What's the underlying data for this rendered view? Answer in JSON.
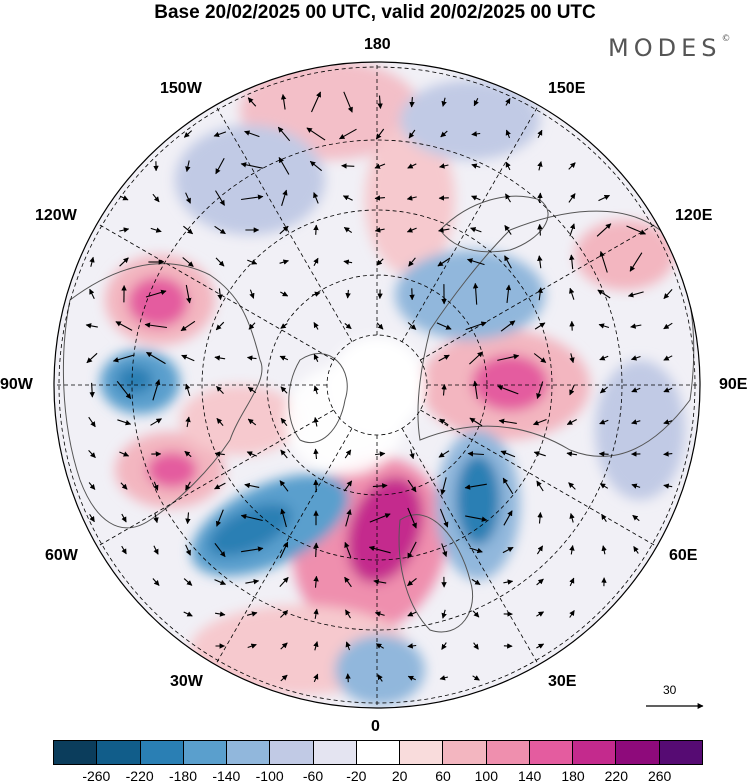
{
  "title": "Base 20/02/2025 00 UTC, valid 20/02/2025 00 UTC",
  "brand": "MODES",
  "brand_mark": "©",
  "longitude_labels": {
    "n180": "180",
    "w150": "150W",
    "e150": "150E",
    "w120": "120W",
    "e120": "120E",
    "w90": "90W",
    "e90": "90E",
    "w60": "60W",
    "e60": "60E",
    "w30": "30W",
    "e30": "30E",
    "s0": "0"
  },
  "reference_vector_label": "30",
  "colorbar": {
    "colors": [
      "#0b3d5c",
      "#115d8a",
      "#2a7fb4",
      "#5a9fcd",
      "#91b7dc",
      "#c1cae5",
      "#e4e4f1",
      "#ffffff",
      "#f9dcdc",
      "#f3b6c0",
      "#ef8fae",
      "#e45c9f",
      "#c42a8d",
      "#8e0a7b",
      "#560b73"
    ],
    "tick_labels": [
      "-260",
      "-220",
      "-180",
      "-140",
      "-100",
      "-60",
      "-20",
      "20",
      "60",
      "100",
      "140",
      "180",
      "220",
      "260"
    ]
  },
  "anomaly_features": [
    {
      "sign": "neg",
      "level": "#c1cae5"
    },
    {
      "sign": "pos",
      "level": "#ef8fae"
    },
    {
      "sign": "neg",
      "level": "#5a9fcd"
    },
    {
      "sign": "pos",
      "level": "#c42a8d"
    }
  ]
}
